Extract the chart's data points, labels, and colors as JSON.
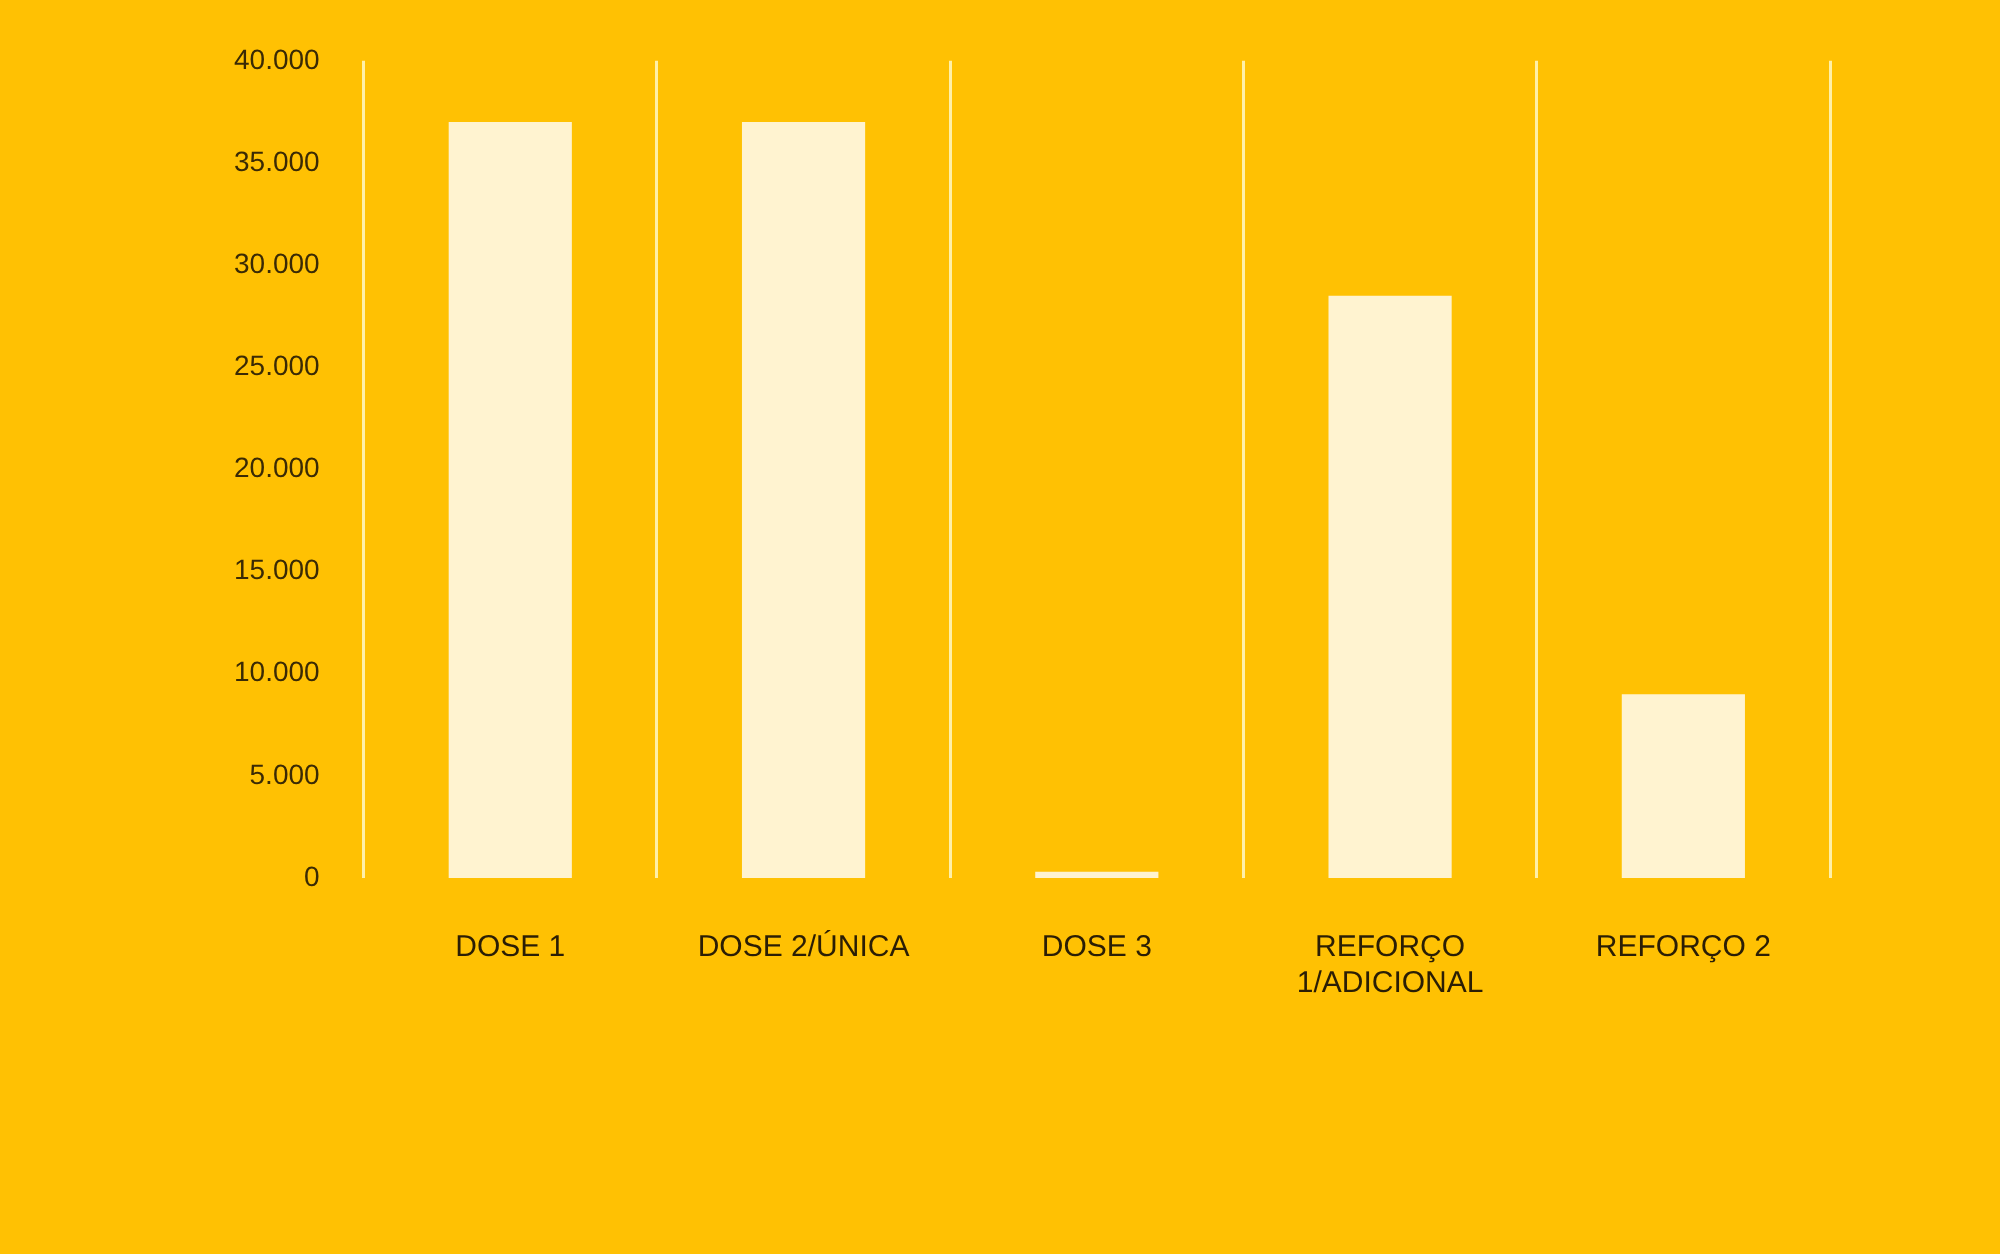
{
  "chart_data": {
    "type": "bar",
    "categories": [
      "DOSE 1",
      "DOSE 2/ÚNICA",
      "DOSE 3",
      "REFORÇO 1/ADICIONAL",
      "REFORÇO 2"
    ],
    "values": [
      37000,
      37000,
      300,
      28500,
      9000
    ],
    "color": "#fff3d0",
    "ylim": [
      0,
      40000
    ],
    "yticks": [
      0,
      {
        "value": 5000,
        "label": "5.000"
      },
      {
        "value": 10000,
        "label": "10.000"
      },
      {
        "value": 15000,
        "label": "15.000"
      },
      {
        "value": 20000,
        "label": "20.000"
      },
      {
        "value": 25000,
        "label": "25.000"
      },
      {
        "value": 30000,
        "label": "30.000"
      },
      {
        "value": 35000,
        "label": "35.000"
      },
      {
        "value": 40000,
        "label": "40.000"
      }
    ],
    "grid": "x"
  }
}
